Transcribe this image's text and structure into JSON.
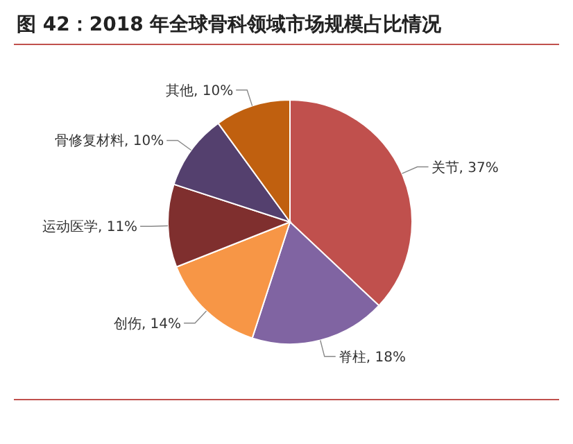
{
  "chart_data": {
    "type": "pie",
    "title": "图 42：2018 年全球骨科领域市场规模占比情况",
    "categories": [
      "关节",
      "脊柱",
      "创伤",
      "运动医学",
      "骨修复材料",
      "其他"
    ],
    "values": [
      37,
      18,
      14,
      11,
      10,
      10
    ],
    "colors": [
      "#c0504d",
      "#8064a2",
      "#f79646",
      "#7f2f2e",
      "#54406e",
      "#c0600f"
    ],
    "value_labels": [
      "37%",
      "18%",
      "14%",
      "11%",
      "10%",
      "10%"
    ]
  }
}
